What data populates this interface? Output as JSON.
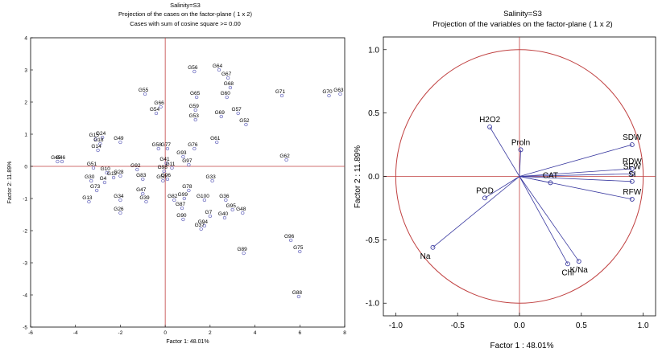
{
  "chart_data": [
    {
      "type": "scatter",
      "title": "Salinity=S3",
      "subtitle": "Projection of the cases on the factor-plane ( 1 x 2)",
      "subtitle2": "Cases with sum of cosine square >= 0.00",
      "xlabel": "Factor 1: 48.01%",
      "ylabel": "Factor 2: 11.89%",
      "xlim": [
        -6,
        8
      ],
      "ylim": [
        -5,
        4
      ],
      "xticks": [
        -6,
        -4,
        -2,
        0,
        2,
        4,
        6,
        8
      ],
      "yticks": [
        -5,
        -4,
        -3,
        -2,
        -1,
        0,
        1,
        2,
        3,
        4
      ],
      "points": [
        {
          "label": "G56",
          "x": 1.3,
          "y": 2.95
        },
        {
          "label": "G64",
          "x": 2.4,
          "y": 3.0
        },
        {
          "label": "G67",
          "x": 2.8,
          "y": 2.75
        },
        {
          "label": "G68",
          "x": 2.9,
          "y": 2.45
        },
        {
          "label": "G55",
          "x": -0.9,
          "y": 2.25
        },
        {
          "label": "G65",
          "x": 1.4,
          "y": 2.15
        },
        {
          "label": "G60",
          "x": 2.75,
          "y": 2.15
        },
        {
          "label": "G71",
          "x": 5.2,
          "y": 2.2
        },
        {
          "label": "G70",
          "x": 7.3,
          "y": 2.2
        },
        {
          "label": "G63",
          "x": 7.8,
          "y": 2.25
        },
        {
          "label": "G66",
          "x": -0.2,
          "y": 1.85
        },
        {
          "label": "G54",
          "x": -0.4,
          "y": 1.65
        },
        {
          "label": "G59",
          "x": 1.35,
          "y": 1.75
        },
        {
          "label": "G53",
          "x": 1.35,
          "y": 1.45
        },
        {
          "label": "G69",
          "x": 2.5,
          "y": 1.55
        },
        {
          "label": "G57",
          "x": 3.25,
          "y": 1.65
        },
        {
          "label": "G52",
          "x": 3.6,
          "y": 1.3
        },
        {
          "label": "G61",
          "x": 2.3,
          "y": 0.75
        },
        {
          "label": "G62",
          "x": 5.4,
          "y": 0.2
        },
        {
          "label": "G45",
          "x": -4.8,
          "y": 0.15
        },
        {
          "label": "G46",
          "x": -4.6,
          "y": 0.15
        },
        {
          "label": "G15",
          "x": -3.1,
          "y": 0.85
        },
        {
          "label": "G24",
          "x": -2.8,
          "y": 0.9
        },
        {
          "label": "G18",
          "x": -2.9,
          "y": 0.7
        },
        {
          "label": "G14",
          "x": -3.0,
          "y": 0.5
        },
        {
          "label": "G49",
          "x": -2.0,
          "y": 0.75
        },
        {
          "label": "G58",
          "x": -0.3,
          "y": 0.55
        },
        {
          "label": "G77",
          "x": 0.1,
          "y": 0.55
        },
        {
          "label": "G76",
          "x": 1.3,
          "y": 0.55
        },
        {
          "label": "G93",
          "x": 0.8,
          "y": 0.3
        },
        {
          "label": "G41",
          "x": 0.05,
          "y": 0.1
        },
        {
          "label": "G97",
          "x": 1.05,
          "y": 0.05
        },
        {
          "label": "G11",
          "x": 0.3,
          "y": -0.05
        },
        {
          "label": "G92",
          "x": -1.25,
          "y": -0.1
        },
        {
          "label": "G98",
          "x": -0.05,
          "y": -0.15
        },
        {
          "label": "G83",
          "x": -1.0,
          "y": -0.4
        },
        {
          "label": "G96",
          "x": 0.1,
          "y": -0.4
        },
        {
          "label": "G50",
          "x": -0.1,
          "y": -0.45
        },
        {
          "label": "G33",
          "x": 2.1,
          "y": -0.45
        },
        {
          "label": "G51",
          "x": -3.2,
          "y": -0.05
        },
        {
          "label": "G10",
          "x": -2.6,
          "y": -0.2
        },
        {
          "label": "G12",
          "x": -2.3,
          "y": -0.35
        },
        {
          "label": "G28",
          "x": -2.0,
          "y": -0.3
        },
        {
          "label": "G30",
          "x": -3.3,
          "y": -0.45
        },
        {
          "label": "G4",
          "x": -2.7,
          "y": -0.5
        },
        {
          "label": "G73",
          "x": -3.05,
          "y": -0.75
        },
        {
          "label": "G47",
          "x": -1.0,
          "y": -0.85
        },
        {
          "label": "G78",
          "x": 1.05,
          "y": -0.75
        },
        {
          "label": "G34",
          "x": -2.0,
          "y": -1.05
        },
        {
          "label": "G39",
          "x": -0.85,
          "y": -1.1
        },
        {
          "label": "G82",
          "x": 0.4,
          "y": -1.05
        },
        {
          "label": "G99",
          "x": 0.85,
          "y": -1.0
        },
        {
          "label": "G100",
          "x": 1.75,
          "y": -1.05
        },
        {
          "label": "G36",
          "x": 2.7,
          "y": -1.05
        },
        {
          "label": "G13",
          "x": -3.4,
          "y": -1.1
        },
        {
          "label": "G87",
          "x": 0.75,
          "y": -1.3
        },
        {
          "label": "G95",
          "x": 3.0,
          "y": -1.35
        },
        {
          "label": "G48",
          "x": 3.45,
          "y": -1.45
        },
        {
          "label": "G26",
          "x": -2.0,
          "y": -1.45
        },
        {
          "label": "G7",
          "x": 2.0,
          "y": -1.55
        },
        {
          "label": "G40",
          "x": 2.65,
          "y": -1.6
        },
        {
          "label": "G90",
          "x": 0.8,
          "y": -1.65
        },
        {
          "label": "G94",
          "x": 1.75,
          "y": -1.85
        },
        {
          "label": "G37",
          "x": 1.6,
          "y": -1.95
        },
        {
          "label": "G96",
          "x": 5.6,
          "y": -2.3
        },
        {
          "label": "G75",
          "x": 6.0,
          "y": -2.65
        },
        {
          "label": "G89",
          "x": 3.5,
          "y": -2.7
        },
        {
          "label": "G88",
          "x": 5.95,
          "y": -4.05
        }
      ]
    },
    {
      "type": "scatter",
      "title": "Salinity=S3",
      "subtitle": "Projection of the variables on the factor-plane ( 1 x 2)",
      "xlabel": "Factor 1 : 48.01%",
      "ylabel": "Factor 2 : 11.89%",
      "xlim": [
        -1.1,
        1.1
      ],
      "ylim": [
        -1.1,
        1.1
      ],
      "xticks": [
        "-1.0",
        "-0.5",
        "0.0",
        "0.5",
        "1.0"
      ],
      "yticks": [
        "1.0",
        "0.5",
        "0.0",
        "-0.5",
        "-1.0"
      ],
      "unit_circle": true,
      "variables": [
        {
          "label": "SDW",
          "x": 0.91,
          "y": 0.25
        },
        {
          "label": "RDW",
          "x": 0.91,
          "y": 0.06
        },
        {
          "label": "SFW",
          "x": 0.91,
          "y": 0.02
        },
        {
          "label": "SI",
          "x": 0.91,
          "y": -0.04
        },
        {
          "label": "RFW",
          "x": 0.91,
          "y": -0.18
        },
        {
          "label": "CAT",
          "x": 0.25,
          "y": -0.05
        },
        {
          "label": "H2O2",
          "x": -0.24,
          "y": 0.39
        },
        {
          "label": "Proln",
          "x": 0.01,
          "y": 0.21
        },
        {
          "label": "POD",
          "x": -0.28,
          "y": -0.17
        },
        {
          "label": "Na",
          "x": -0.7,
          "y": -0.56
        },
        {
          "label": "K/Na",
          "x": 0.48,
          "y": -0.67
        },
        {
          "label": "Chl",
          "x": 0.39,
          "y": -0.69
        }
      ]
    }
  ],
  "colors": {
    "points": "#5a5ab8",
    "axes_cross": "#c04040",
    "circle": "#c04040",
    "vectors": "#3a3aa0",
    "frame": "#000000"
  }
}
